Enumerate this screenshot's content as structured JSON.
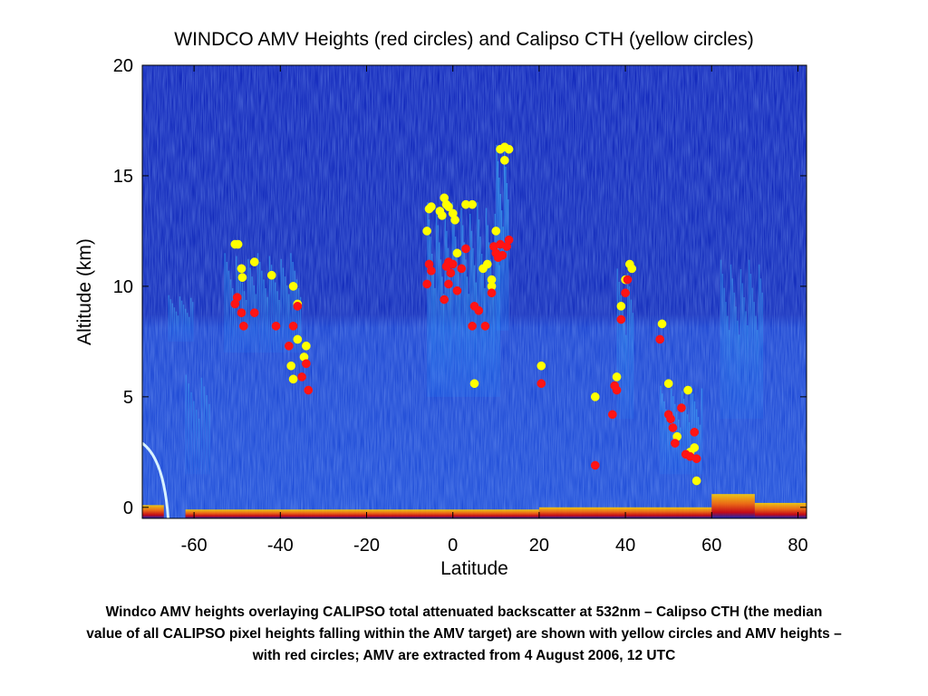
{
  "chart_data": {
    "type": "scatter",
    "title": "WINDCO AMV Heights (red circles) and Calipso CTH (yellow circles)",
    "xlabel": "Latitude",
    "ylabel": "Altitude (km)",
    "xlim": [
      -72,
      82
    ],
    "ylim": [
      -0.5,
      20
    ],
    "x_ticks": [
      -60,
      -40,
      -20,
      0,
      20,
      40,
      60,
      80
    ],
    "y_ticks": [
      0,
      5,
      10,
      15,
      20
    ],
    "background": "CALIPSO total attenuated backscatter at 532nm (color image)",
    "series": [
      {
        "name": "Calipso CTH",
        "color": "#ffff00",
        "points": [
          [
            -50.5,
            11.9
          ],
          [
            -49.8,
            11.9
          ],
          [
            -49,
            10.8
          ],
          [
            -48.8,
            10.4
          ],
          [
            -46,
            11.1
          ],
          [
            -42,
            10.5
          ],
          [
            -37,
            10.0
          ],
          [
            -36,
            9.2
          ],
          [
            -36,
            7.6
          ],
          [
            -34,
            7.3
          ],
          [
            -34.5,
            6.8
          ],
          [
            -37.5,
            6.4
          ],
          [
            -37,
            5.8
          ],
          [
            -6,
            12.5
          ],
          [
            -5.5,
            13.5
          ],
          [
            -5,
            13.6
          ],
          [
            -3,
            13.4
          ],
          [
            -2.5,
            13.2
          ],
          [
            -2,
            14.0
          ],
          [
            -1,
            13.6
          ],
          [
            0,
            13.3
          ],
          [
            0.5,
            13.0
          ],
          [
            -1.5,
            13.7
          ],
          [
            3,
            13.7
          ],
          [
            4.5,
            13.7
          ],
          [
            1,
            11.5
          ],
          [
            8,
            11.0
          ],
          [
            7,
            10.8
          ],
          [
            9,
            10.3
          ],
          [
            9,
            10.0
          ],
          [
            10,
            12.5
          ],
          [
            5,
            5.6
          ],
          [
            11,
            16.2
          ],
          [
            12,
            16.3
          ],
          [
            13,
            16.2
          ],
          [
            12,
            15.7
          ],
          [
            20.5,
            6.4
          ],
          [
            33,
            5.0
          ],
          [
            38,
            5.9
          ],
          [
            39,
            9.1
          ],
          [
            40,
            10.3
          ],
          [
            41,
            11.0
          ],
          [
            41.5,
            10.8
          ],
          [
            48.5,
            8.3
          ],
          [
            50,
            5.6
          ],
          [
            54.5,
            5.3
          ],
          [
            52,
            3.2
          ],
          [
            55,
            2.5
          ],
          [
            56,
            2.7
          ],
          [
            56.5,
            1.2
          ]
        ]
      },
      {
        "name": "AMV",
        "color": "#ff1414",
        "points": [
          [
            -50.5,
            9.2
          ],
          [
            -50,
            9.5
          ],
          [
            -49,
            8.8
          ],
          [
            -48.5,
            8.2
          ],
          [
            -46,
            8.8
          ],
          [
            -41,
            8.2
          ],
          [
            -38,
            7.3
          ],
          [
            -37,
            8.2
          ],
          [
            -36,
            9.1
          ],
          [
            -35,
            5.9
          ],
          [
            -34,
            6.5
          ],
          [
            -33.5,
            5.3
          ],
          [
            -6,
            10.1
          ],
          [
            -5.5,
            11.0
          ],
          [
            -5,
            10.7
          ],
          [
            -2,
            9.4
          ],
          [
            -1.5,
            10.9
          ],
          [
            -1,
            11.1
          ],
          [
            -0.5,
            10.6
          ],
          [
            -1,
            10.1
          ],
          [
            0,
            11.0
          ],
          [
            1,
            9.8
          ],
          [
            2,
            10.8
          ],
          [
            3,
            11.7
          ],
          [
            4.5,
            8.2
          ],
          [
            5,
            9.1
          ],
          [
            6,
            8.9
          ],
          [
            7.5,
            8.2
          ],
          [
            9,
            9.7
          ],
          [
            9.5,
            11.8
          ],
          [
            10,
            11.5
          ],
          [
            10.5,
            11.3
          ],
          [
            11,
            11.9
          ],
          [
            11.5,
            11.4
          ],
          [
            12.5,
            11.8
          ],
          [
            13,
            12.1
          ],
          [
            20.5,
            5.6
          ],
          [
            33,
            1.9
          ],
          [
            37,
            4.2
          ],
          [
            37.5,
            5.5
          ],
          [
            38,
            5.3
          ],
          [
            39,
            8.5
          ],
          [
            40,
            9.7
          ],
          [
            40.5,
            10.3
          ],
          [
            48,
            7.6
          ],
          [
            50,
            4.2
          ],
          [
            50.5,
            4.0
          ],
          [
            51,
            3.6
          ],
          [
            53,
            4.5
          ],
          [
            51.5,
            2.9
          ],
          [
            54,
            2.4
          ],
          [
            55,
            2.3
          ],
          [
            56,
            3.4
          ],
          [
            56.5,
            2.2
          ]
        ]
      }
    ]
  },
  "caption": {
    "line1": "Windco AMV heights overlaying CALIPSO  total attenuated backscatter at 532nm – Calipso CTH (the median",
    "line2": "value of all CALIPSO pixel heights falling within the AMV target) are shown with yellow circles and AMV heights –",
    "line3": "with red circles; AMV are extracted from 4 August 2006, 12 UTC"
  }
}
